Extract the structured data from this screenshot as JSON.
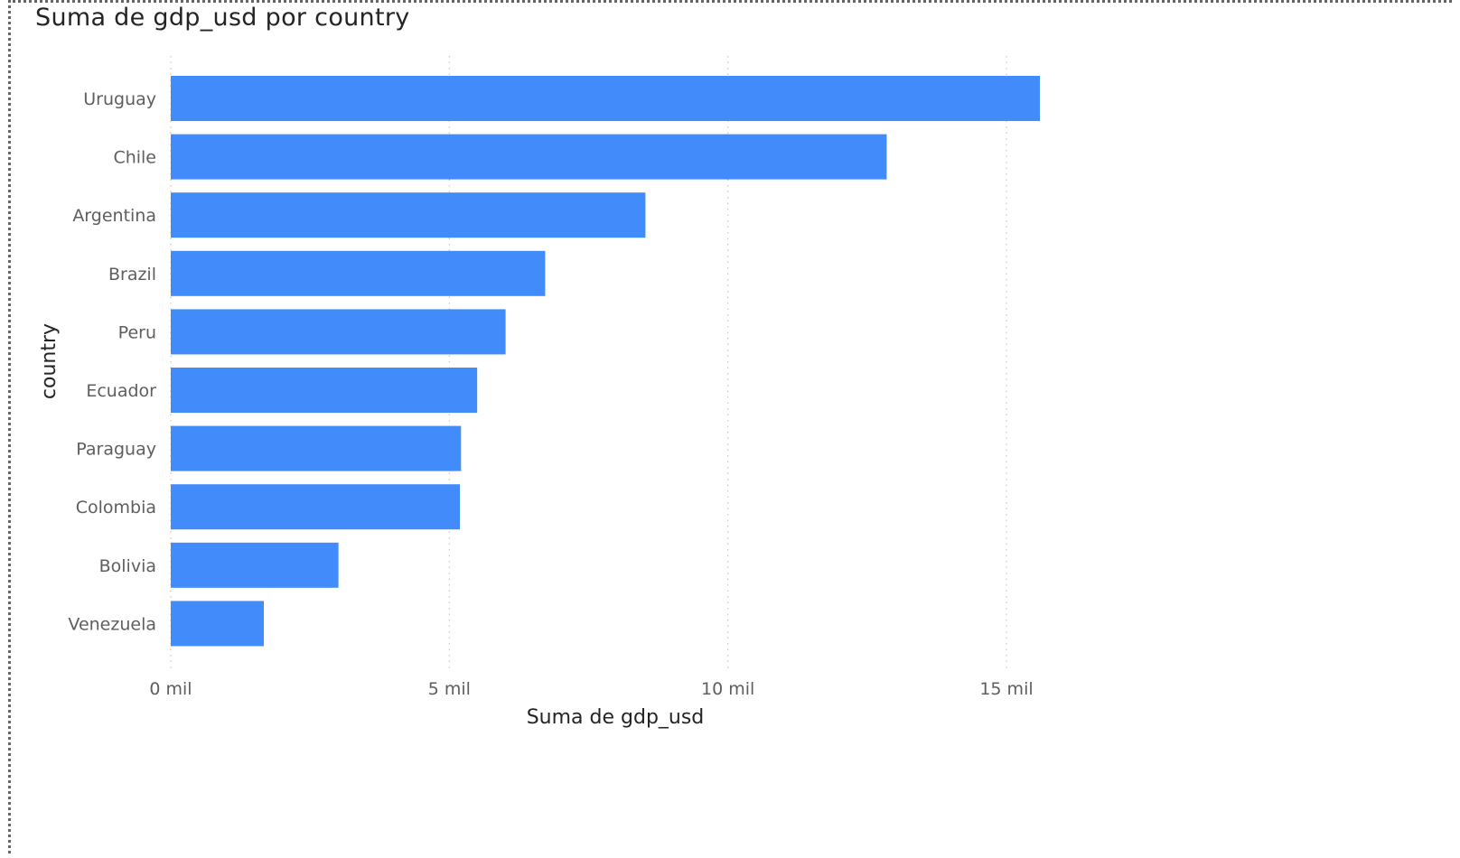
{
  "chart_data": {
    "type": "bar",
    "orientation": "horizontal",
    "title": "Suma de gdp_usd por country",
    "xlabel": "Suma de gdp_usd",
    "ylabel": "country",
    "categories": [
      "Uruguay",
      "Chile",
      "Argentina",
      "Brazil",
      "Peru",
      "Ecuador",
      "Paraguay",
      "Colombia",
      "Bolivia",
      "Venezuela"
    ],
    "series": [
      {
        "values": [
          15600,
          12850,
          8520,
          6720,
          6010,
          5500,
          5210,
          5190,
          3010,
          1670
        ]
      }
    ],
    "xlim": [
      0,
      15000
    ],
    "x_ticks": [
      0,
      5000,
      10000,
      15000
    ],
    "x_tick_labels": [
      "0 mil",
      "5 mil",
      "10 mil",
      "15 mil"
    ],
    "grid": "vertical-dotted",
    "bar_color": "#418bfa"
  }
}
